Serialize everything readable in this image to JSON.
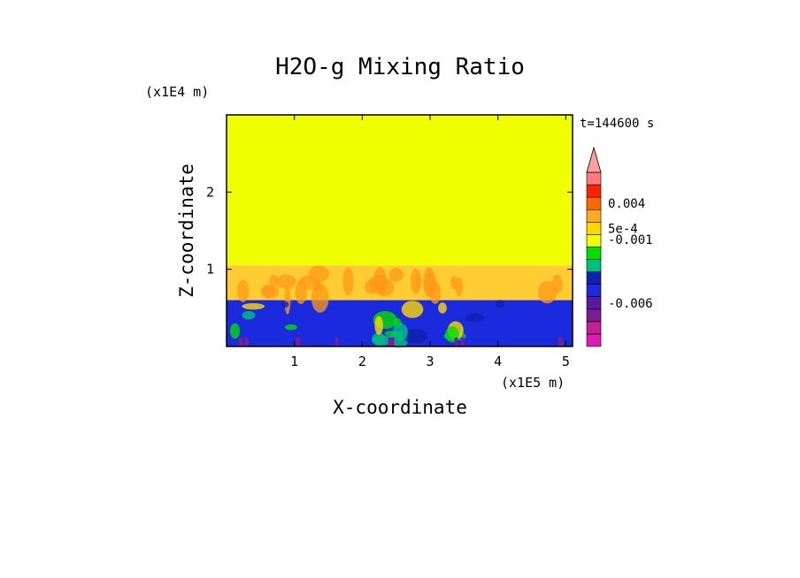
{
  "chart_data": {
    "type": "heatmap",
    "title": "H2O-g Mixing Ratio",
    "xlabel": "X-coordinate",
    "ylabel": "Z-coordinate",
    "x_scale_label": "(x1E5 m)",
    "y_scale_label": "(x1E4 m)",
    "time_label": "t=144600 s",
    "xlim": [
      0,
      5.1
    ],
    "ylim": [
      0,
      3.0
    ],
    "x_ticks": [
      {
        "value": 1,
        "label": "1"
      },
      {
        "value": 2,
        "label": "2"
      },
      {
        "value": 3,
        "label": "3"
      },
      {
        "value": 4,
        "label": "4"
      },
      {
        "value": 5,
        "label": "5"
      }
    ],
    "y_ticks": [
      {
        "value": 1,
        "label": "1"
      },
      {
        "value": 2,
        "label": "2"
      }
    ],
    "regions": [
      {
        "name": "upper layer",
        "z_range": [
          1.05,
          3.0
        ],
        "color": "#f0ff00"
      },
      {
        "name": "mixing layer",
        "z_range": [
          0.6,
          1.05
        ],
        "color": "#ffcc33"
      },
      {
        "name": "lower layer",
        "z_range": [
          0.0,
          0.6
        ],
        "color": "#1a2adc"
      }
    ],
    "colorbar": {
      "extend": "max",
      "bins": [
        {
          "color": "#e01ab4"
        },
        {
          "color": "#c42096"
        },
        {
          "color": "#7a1e98"
        },
        {
          "color": "#5a1aa0"
        },
        {
          "color": "#1a2adc"
        },
        {
          "color": "#1020b0"
        },
        {
          "color": "#00c080"
        },
        {
          "color": "#00e000"
        },
        {
          "color": "#f0ff00"
        },
        {
          "color": "#ffd800"
        },
        {
          "color": "#ffaa22"
        },
        {
          "color": "#ff6a00"
        },
        {
          "color": "#ff2200"
        },
        {
          "color": "#ff7a7a"
        }
      ],
      "extend_color": "#ffa0a0",
      "labels": [
        {
          "text": "0.004",
          "bin": 11.5
        },
        {
          "text": "5e-4",
          "bin": 9.5
        },
        {
          "text": "-0.001",
          "bin": 8.6
        },
        {
          "text": "-0.006",
          "bin": 3.5
        }
      ]
    }
  }
}
